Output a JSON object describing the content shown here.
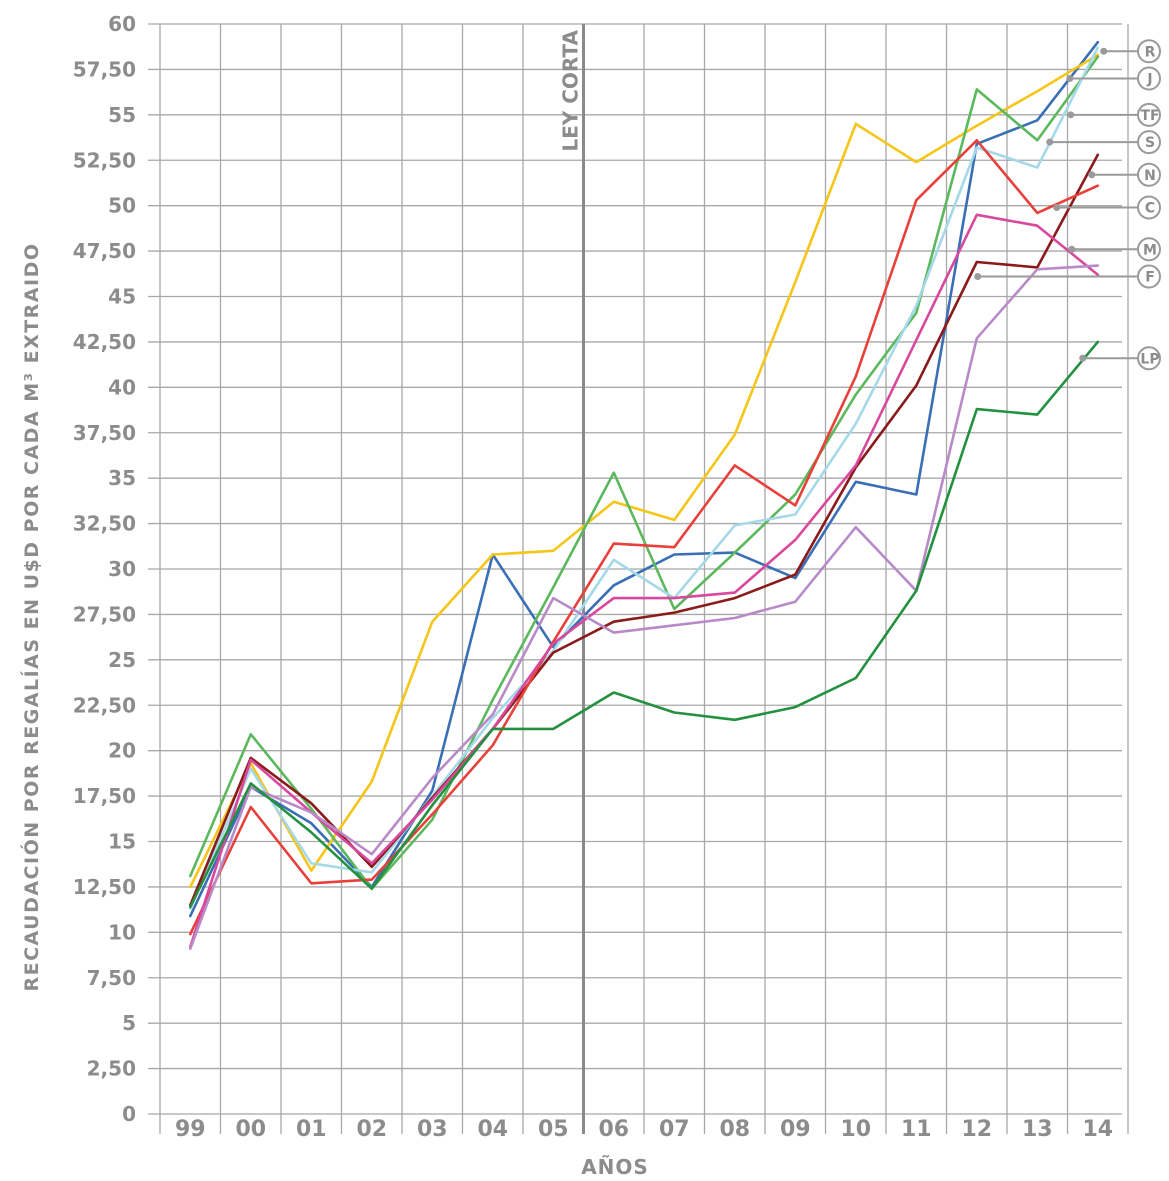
{
  "chart_data": {
    "type": "line",
    "title": "",
    "xlabel": "AÑOS",
    "ylabel": "RECAUDACIÓN POR REGALÍAS EN U$D POR CADA M³ EXTRAIDO",
    "categories": [
      "99",
      "00",
      "01",
      "02",
      "03",
      "04",
      "05",
      "06",
      "07",
      "08",
      "09",
      "10",
      "11",
      "12",
      "13",
      "14"
    ],
    "ylim": [
      0,
      60
    ],
    "y_ticks": [
      0,
      2.5,
      5,
      7.5,
      10,
      12.5,
      15,
      17.5,
      20,
      22.5,
      25,
      27.5,
      30,
      32.5,
      35,
      37.5,
      40,
      42.5,
      45,
      47.5,
      50,
      52.5,
      55,
      57.5,
      60
    ],
    "y_tick_labels": [
      "0",
      "2,50",
      "5",
      "7,50",
      "10",
      "12,50",
      "15",
      "17,50",
      "20",
      "22,50",
      "25",
      "27,50",
      "30",
      "32,50",
      "35",
      "37,50",
      "40",
      "42,50",
      "45",
      "47,50",
      "50",
      "52,50",
      "55",
      "57,50",
      "60"
    ],
    "grid": true,
    "legend_position": "right",
    "annotations": [
      {
        "label": "LEY CORTA",
        "x": "06"
      }
    ],
    "series": [
      {
        "name": "R",
        "color": "#3a6fb5",
        "values": [
          10.9,
          18.0,
          16.0,
          12.5,
          17.8,
          30.8,
          25.7,
          29.1,
          30.8,
          30.9,
          29.5,
          34.8,
          34.1,
          53.4,
          54.7,
          59.0
        ]
      },
      {
        "name": "J",
        "color": "#f5c518",
        "values": [
          12.5,
          19.3,
          13.4,
          18.3,
          27.1,
          30.8,
          31.0,
          33.7,
          32.7,
          37.4,
          45.8,
          54.5,
          52.4,
          54.4,
          56.3,
          58.3
        ]
      },
      {
        "name": "TF",
        "color": "#5cb85c",
        "values": [
          13.1,
          20.9,
          16.8,
          12.4,
          16.2,
          22.8,
          29.0,
          35.3,
          27.8,
          30.9,
          34.1,
          39.6,
          44.1,
          56.4,
          53.6,
          58.2
        ]
      },
      {
        "name": "S",
        "color": "#a5d8e8",
        "values": [
          11.3,
          19.0,
          13.8,
          13.3,
          17.5,
          21.8,
          25.5,
          30.5,
          28.4,
          32.4,
          33.0,
          38.0,
          44.5,
          53.2,
          52.1,
          58.7
        ]
      },
      {
        "name": "N",
        "color": "#8b1a1a",
        "values": [
          11.5,
          19.6,
          17.1,
          13.6,
          17.4,
          21.2,
          25.4,
          27.1,
          27.6,
          28.4,
          29.7,
          35.6,
          40.1,
          46.9,
          46.6,
          52.8
        ]
      },
      {
        "name": "C",
        "color": "#e8403a",
        "values": [
          9.9,
          16.9,
          12.7,
          12.9,
          16.5,
          20.3,
          26.0,
          31.4,
          31.2,
          35.7,
          33.5,
          40.6,
          50.3,
          53.6,
          49.6,
          51.1
        ]
      },
      {
        "name": "M",
        "color": "#d8489c",
        "values": [
          9.2,
          19.5,
          16.6,
          13.8,
          17.3,
          21.2,
          25.9,
          28.4,
          28.4,
          28.7,
          31.6,
          35.7,
          42.6,
          49.5,
          48.9,
          46.2
        ]
      },
      {
        "name": "F",
        "color": "#b98ac8",
        "values": [
          9.1,
          18.0,
          16.6,
          14.3,
          18.5,
          22.0,
          28.4,
          26.5,
          26.9,
          27.3,
          28.2,
          32.3,
          28.8,
          42.7,
          46.5,
          46.7
        ]
      },
      {
        "name": "LP",
        "color": "#23913f",
        "values": [
          11.4,
          18.2,
          15.5,
          12.4,
          17.0,
          21.2,
          21.2,
          23.2,
          22.1,
          21.7,
          22.4,
          24.0,
          28.8,
          38.8,
          38.5,
          42.5
        ]
      }
    ]
  },
  "legend": {
    "markers": [
      {
        "label": "R",
        "value": 58.5
      },
      {
        "label": "J",
        "value": 57.0
      },
      {
        "label": "TF",
        "value": 55.0
      },
      {
        "label": "S",
        "value": 53.5
      },
      {
        "label": "N",
        "value": 51.7
      },
      {
        "label": "C",
        "value": 49.9
      },
      {
        "label": "M",
        "value": 47.6
      },
      {
        "label": "F",
        "value": 46.1
      },
      {
        "label": "LP",
        "value": 41.6
      }
    ]
  }
}
